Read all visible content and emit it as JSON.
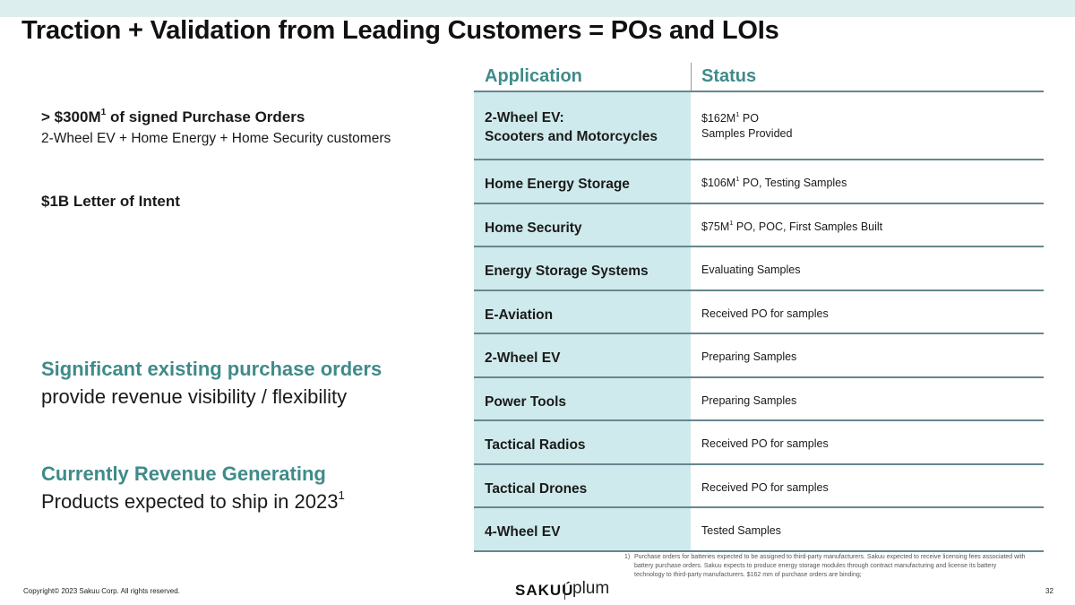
{
  "title": "Traction + Validation from Leading Customers = POs and LOIs",
  "left": {
    "po_headline_prefix": "> $300M",
    "po_headline_sup": "1",
    "po_headline_suffix": " of signed Purchase Orders",
    "po_subline": "2-Wheel EV + Home Energy + Home Security customers",
    "loi": "$1B Letter of Intent",
    "highlight1_title": "Significant existing purchase orders",
    "highlight1_body": "provide revenue visibility / flexibility",
    "highlight2_title": "Currently Revenue Generating",
    "highlight2_body_prefix": "Products expected to ship in 2023",
    "highlight2_body_sup": "1"
  },
  "table": {
    "headers": {
      "application": "Application",
      "status": "Status"
    },
    "rows": [
      {
        "app_line1": "2-Wheel EV:",
        "app_line2": "Scooters and Motorcycles",
        "status_prefix": "$162M",
        "status_sup": "1",
        "status_suffix": " PO",
        "status_line2": "Samples Provided"
      },
      {
        "app": "Home Energy Storage",
        "status_prefix": "$106M",
        "status_sup": "1",
        "status_suffix": " PO, Testing Samples"
      },
      {
        "app": "Home Security",
        "status_prefix": "$75M",
        "status_sup": "1",
        "status_suffix": " PO, POC, First Samples Built"
      },
      {
        "app": "Energy Storage Systems",
        "status": "Evaluating Samples"
      },
      {
        "app": "E-Aviation",
        "status": "Received PO for samples"
      },
      {
        "app": "2-Wheel EV",
        "status": "Preparing Samples"
      },
      {
        "app": "Power Tools",
        "status": "Preparing Samples"
      },
      {
        "app": "Tactical Radios",
        "status": "Received PO for samples"
      },
      {
        "app": "Tactical Drones",
        "status": "Received PO for samples"
      },
      {
        "app": "4-Wheel EV",
        "status": "Tested Samples"
      }
    ]
  },
  "footnote": {
    "number": "1)",
    "text": "Purchase orders for batteries expected to be assigned to third-party manufacturers. Sakuu expected to receive licensing fees associated with battery purchase orders. Sakuu expects to produce energy storage modules through contract manufacturing and license its battery technology to third-party manufacturers. $162 mm of purchase orders are binding;"
  },
  "footer": {
    "copyright": "Copyright© 2023 Sakuu Corp. All rights reserved.",
    "page_number": "32",
    "logo_sakuu": "SAKUÚ",
    "logo_plum": "plum"
  },
  "colors": {
    "accent_teal": "#3f8b8a",
    "table_app_fill": "#cfeaec",
    "top_bar": "#dcefee",
    "rule": "#66868f"
  }
}
